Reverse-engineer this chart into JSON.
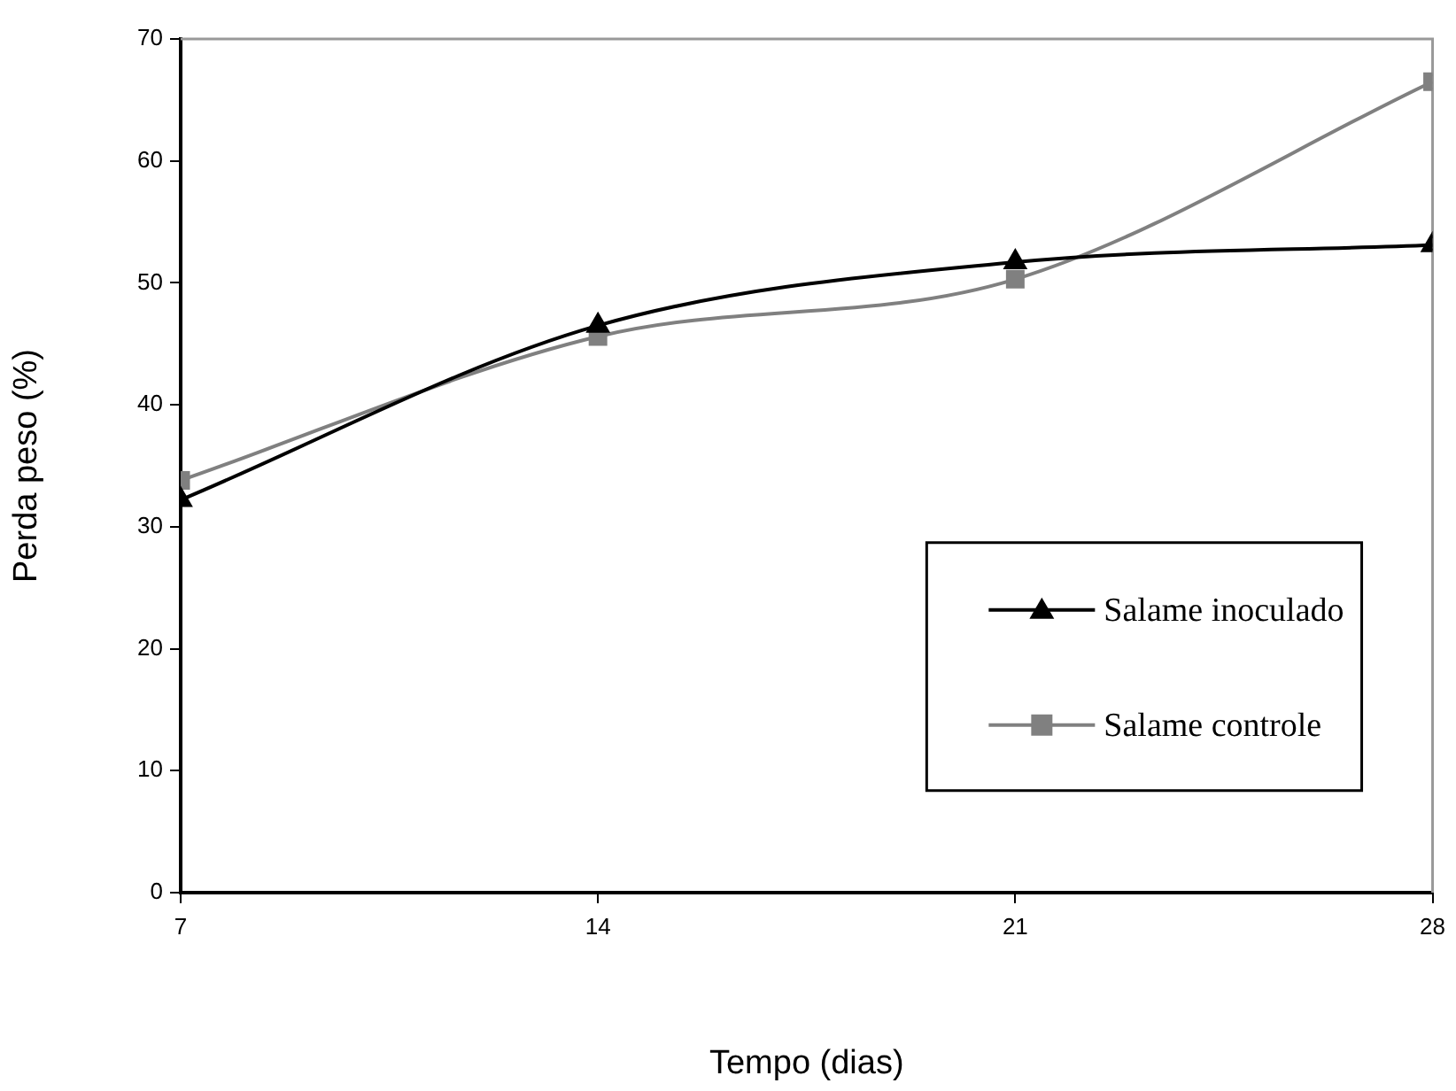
{
  "chart_data": {
    "type": "line",
    "xlabel": "Tempo (dias)",
    "ylabel": "Perda peso (%)",
    "x": [
      7,
      14,
      21,
      28
    ],
    "series": [
      {
        "name": "Salame inoculado",
        "color": "#000000",
        "marker": "triangle",
        "values": [
          32.2,
          46.5,
          51.7,
          53.1
        ]
      },
      {
        "name": "Salame controle",
        "color": "#808080",
        "marker": "square",
        "values": [
          33.8,
          45.6,
          50.3,
          66.5
        ]
      }
    ],
    "xlim": [
      7,
      28
    ],
    "xticks": [
      7,
      14,
      21,
      28
    ],
    "ylim": [
      0,
      70
    ],
    "yticks": [
      0,
      10,
      20,
      30,
      40,
      50,
      60,
      70
    ],
    "grid": false,
    "legend": "right",
    "line_style": "solid"
  }
}
